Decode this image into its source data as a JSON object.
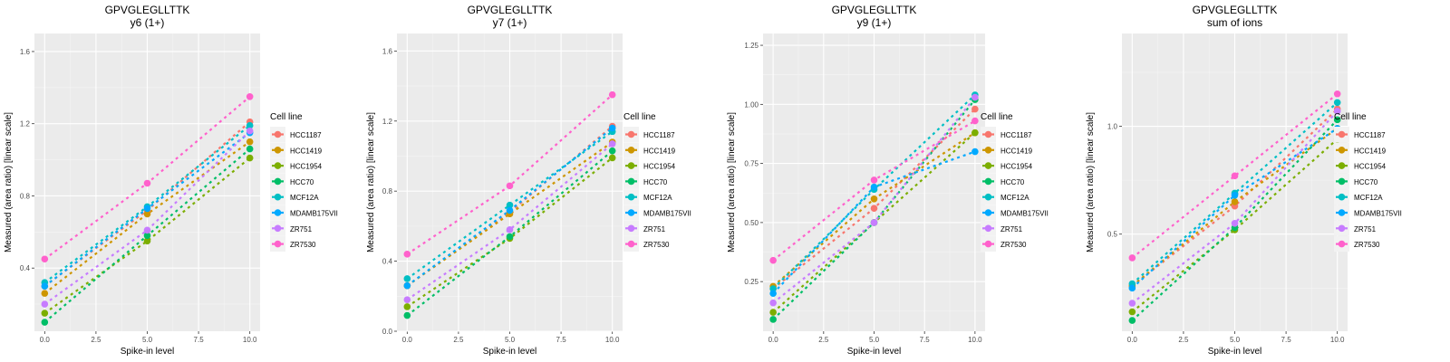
{
  "legend": {
    "title": "Cell line",
    "entries": [
      "HCC1187",
      "HCC1419",
      "HCC1954",
      "HCC70",
      "MCF12A",
      "MDAMB175VII",
      "ZR751",
      "ZR7530"
    ],
    "colors": [
      "#F8766D",
      "#CD9600",
      "#7CAE00",
      "#00BE67",
      "#00BFC4",
      "#00A9FF",
      "#C77CFF",
      "#FF61CC"
    ]
  },
  "chart_data": [
    {
      "type": "line",
      "title": "GPVGLEGLLTTK",
      "subtitle": "y6 (1+)",
      "xlabel": "Spike-in level",
      "ylabel": "Measured (area ratio) [linear scale]",
      "x": [
        0,
        5,
        10
      ],
      "xticks": [
        "0.0",
        "2.5",
        "5.0",
        "7.5",
        "10.0"
      ],
      "xlim": [
        -0.5,
        10.5
      ],
      "yticks": [
        0.4,
        0.8,
        1.2,
        1.6
      ],
      "ytick_labels": [
        "0.4",
        "0.8",
        "1.2",
        "1.6"
      ],
      "ylim": [
        0.05,
        1.7
      ],
      "grid": true,
      "legend_position": "right",
      "series": [
        {
          "name": "HCC1187",
          "values": [
            0.3,
            0.72,
            1.21
          ]
        },
        {
          "name": "HCC1419",
          "values": [
            0.26,
            0.7,
            1.1
          ]
        },
        {
          "name": "HCC1954",
          "values": [
            0.15,
            0.55,
            1.01
          ]
        },
        {
          "name": "HCC70",
          "values": [
            0.1,
            0.58,
            1.06
          ]
        },
        {
          "name": "MCF12A",
          "values": [
            0.32,
            0.74,
            1.19
          ]
        },
        {
          "name": "MDAMB175VII",
          "values": [
            0.3,
            0.73,
            1.15
          ]
        },
        {
          "name": "ZR751",
          "values": [
            0.2,
            0.61,
            1.16
          ]
        },
        {
          "name": "ZR7530",
          "values": [
            0.45,
            0.87,
            1.35
          ]
        }
      ]
    },
    {
      "type": "line",
      "title": "GPVGLEGLLTTK",
      "subtitle": "y7 (1+)",
      "xlabel": "Spike-in level",
      "ylabel": "Measured (area ratio) [linear scale]",
      "x": [
        0,
        5,
        10
      ],
      "xticks": [
        "0.0",
        "2.5",
        "5.0",
        "7.5",
        "10.0"
      ],
      "xlim": [
        -0.5,
        10.5
      ],
      "yticks": [
        0.0,
        0.4,
        0.8,
        1.2,
        1.6
      ],
      "ytick_labels": [
        "0.0",
        "0.4",
        "0.8",
        "1.2",
        "1.6"
      ],
      "ylim": [
        0.0,
        1.7
      ],
      "grid": true,
      "legend_position": "right",
      "series": [
        {
          "name": "HCC1187",
          "values": [
            0.26,
            0.68,
            1.17
          ]
        },
        {
          "name": "HCC1419",
          "values": [
            0.26,
            0.67,
            1.08
          ]
        },
        {
          "name": "HCC1954",
          "values": [
            0.14,
            0.53,
            0.99
          ]
        },
        {
          "name": "HCC70",
          "values": [
            0.09,
            0.54,
            1.03
          ]
        },
        {
          "name": "MCF12A",
          "values": [
            0.3,
            0.72,
            1.14
          ]
        },
        {
          "name": "MDAMB175VII",
          "values": [
            0.26,
            0.69,
            1.16
          ]
        },
        {
          "name": "ZR751",
          "values": [
            0.18,
            0.58,
            1.07
          ]
        },
        {
          "name": "ZR7530",
          "values": [
            0.44,
            0.83,
            1.35
          ]
        }
      ]
    },
    {
      "type": "line",
      "title": "GPVGLEGLLTTK",
      "subtitle": "y9 (1+)",
      "xlabel": "Spike-in level",
      "ylabel": "Measured (area ratio) [linear scale]",
      "x": [
        0,
        5,
        10
      ],
      "xticks": [
        "0.0",
        "2.5",
        "5.0",
        "7.5",
        "10.0"
      ],
      "xlim": [
        -0.5,
        10.5
      ],
      "yticks": [
        0.25,
        0.5,
        0.75,
        1.0,
        1.25
      ],
      "ytick_labels": [
        "0.25",
        "0.50",
        "0.75",
        "1.00",
        "1.25"
      ],
      "ylim": [
        0.04,
        1.3
      ],
      "grid": true,
      "legend_position": "right",
      "series": [
        {
          "name": "HCC1187",
          "values": [
            0.22,
            0.56,
            0.98
          ]
        },
        {
          "name": "HCC1419",
          "values": [
            0.23,
            0.6,
            0.88
          ]
        },
        {
          "name": "HCC1954",
          "values": [
            0.12,
            0.5,
            0.88
          ]
        },
        {
          "name": "HCC70",
          "values": [
            0.09,
            0.5,
            1.02
          ]
        },
        {
          "name": "MCF12A",
          "values": [
            0.22,
            0.64,
            1.04
          ]
        },
        {
          "name": "MDAMB175VII",
          "values": [
            0.2,
            0.65,
            0.8
          ]
        },
        {
          "name": "ZR751",
          "values": [
            0.16,
            0.5,
            1.03
          ]
        },
        {
          "name": "ZR7530",
          "values": [
            0.34,
            0.68,
            0.93
          ]
        }
      ]
    },
    {
      "type": "line",
      "title": "GPVGLEGLLTTK",
      "subtitle": "sum of ions",
      "xlabel": "Spike-in level",
      "ylabel": "Measured (area ratio) [linear scale]",
      "x": [
        0,
        5,
        10
      ],
      "xticks": [
        "0.0",
        "2.5",
        "5.0",
        "7.5",
        "10.0"
      ],
      "xlim": [
        -0.5,
        10.5
      ],
      "yticks": [
        0.5,
        1.0
      ],
      "ytick_labels": [
        "0.5",
        "1.0"
      ],
      "ylim": [
        0.05,
        1.43
      ],
      "grid": true,
      "legend_position": "right",
      "series": [
        {
          "name": "HCC1187",
          "values": [
            0.26,
            0.63,
            1.08
          ]
        },
        {
          "name": "HCC1419",
          "values": [
            0.26,
            0.65,
            0.99
          ]
        },
        {
          "name": "HCC1954",
          "values": [
            0.14,
            0.52,
            0.94
          ]
        },
        {
          "name": "HCC70",
          "values": [
            0.1,
            0.53,
            1.03
          ]
        },
        {
          "name": "MCF12A",
          "values": [
            0.27,
            0.69,
            1.11
          ]
        },
        {
          "name": "MDAMB175VII",
          "values": [
            0.25,
            0.68,
            0.99
          ]
        },
        {
          "name": "ZR751",
          "values": [
            0.18,
            0.55,
            1.07
          ]
        },
        {
          "name": "ZR7530",
          "values": [
            0.39,
            0.77,
            1.15
          ]
        }
      ]
    }
  ]
}
